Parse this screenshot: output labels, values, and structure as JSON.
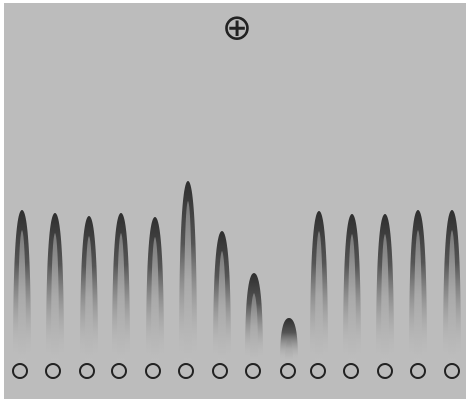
{
  "symbol": "⊕"
}
